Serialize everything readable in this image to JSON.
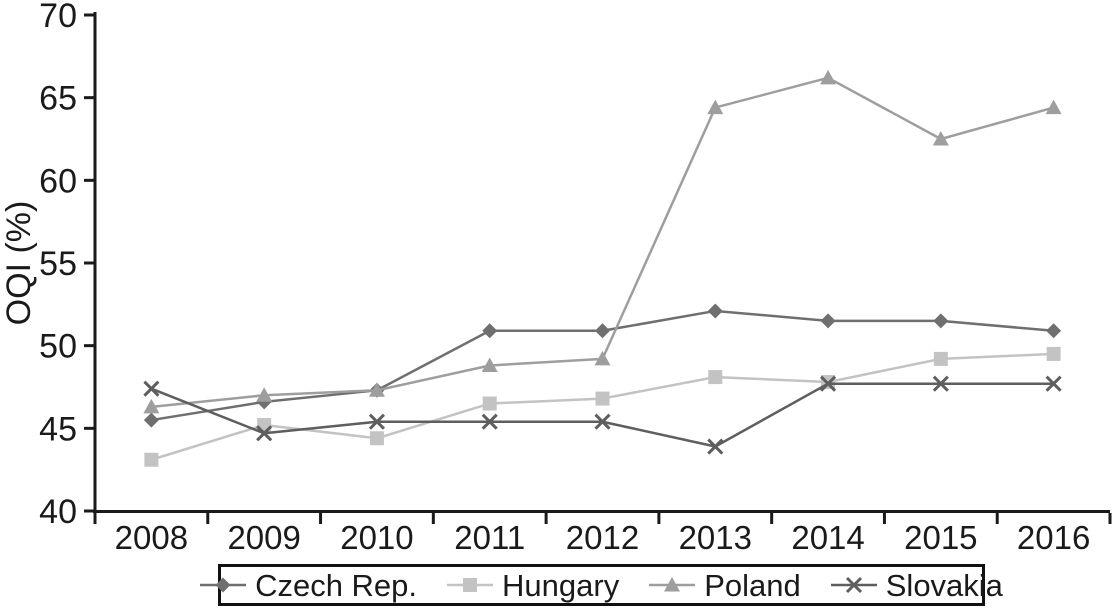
{
  "chart_data": {
    "type": "line",
    "title": "",
    "xlabel": "",
    "ylabel": "OQI (%)",
    "ylim": [
      40,
      70
    ],
    "yticks": [
      40,
      45,
      50,
      55,
      60,
      65,
      70
    ],
    "grid": false,
    "legend_position": "bottom",
    "categories": [
      "2008",
      "2009",
      "2010",
      "2011",
      "2012",
      "2013",
      "2014",
      "2015",
      "2016"
    ],
    "series": [
      {
        "name": "Czech Rep.",
        "marker": "diamond",
        "color": "#6f6f6f",
        "values": [
          45.5,
          46.6,
          47.3,
          50.9,
          50.9,
          52.1,
          51.5,
          51.5,
          50.9
        ]
      },
      {
        "name": "Hungary",
        "marker": "square",
        "color": "#c3c3c3",
        "values": [
          43.1,
          45.2,
          44.4,
          46.5,
          46.8,
          48.1,
          47.8,
          49.2,
          49.5
        ]
      },
      {
        "name": "Poland",
        "marker": "triangle",
        "color": "#9e9e9e",
        "values": [
          46.3,
          47.0,
          47.3,
          48.8,
          49.2,
          64.4,
          66.2,
          62.5,
          64.4
        ]
      },
      {
        "name": "Slovakia",
        "marker": "x",
        "color": "#5e5e5e",
        "values": [
          47.4,
          44.7,
          45.4,
          45.4,
          45.4,
          43.9,
          47.7,
          47.7,
          47.7
        ]
      }
    ],
    "axis_color": "#1a1a1a"
  }
}
